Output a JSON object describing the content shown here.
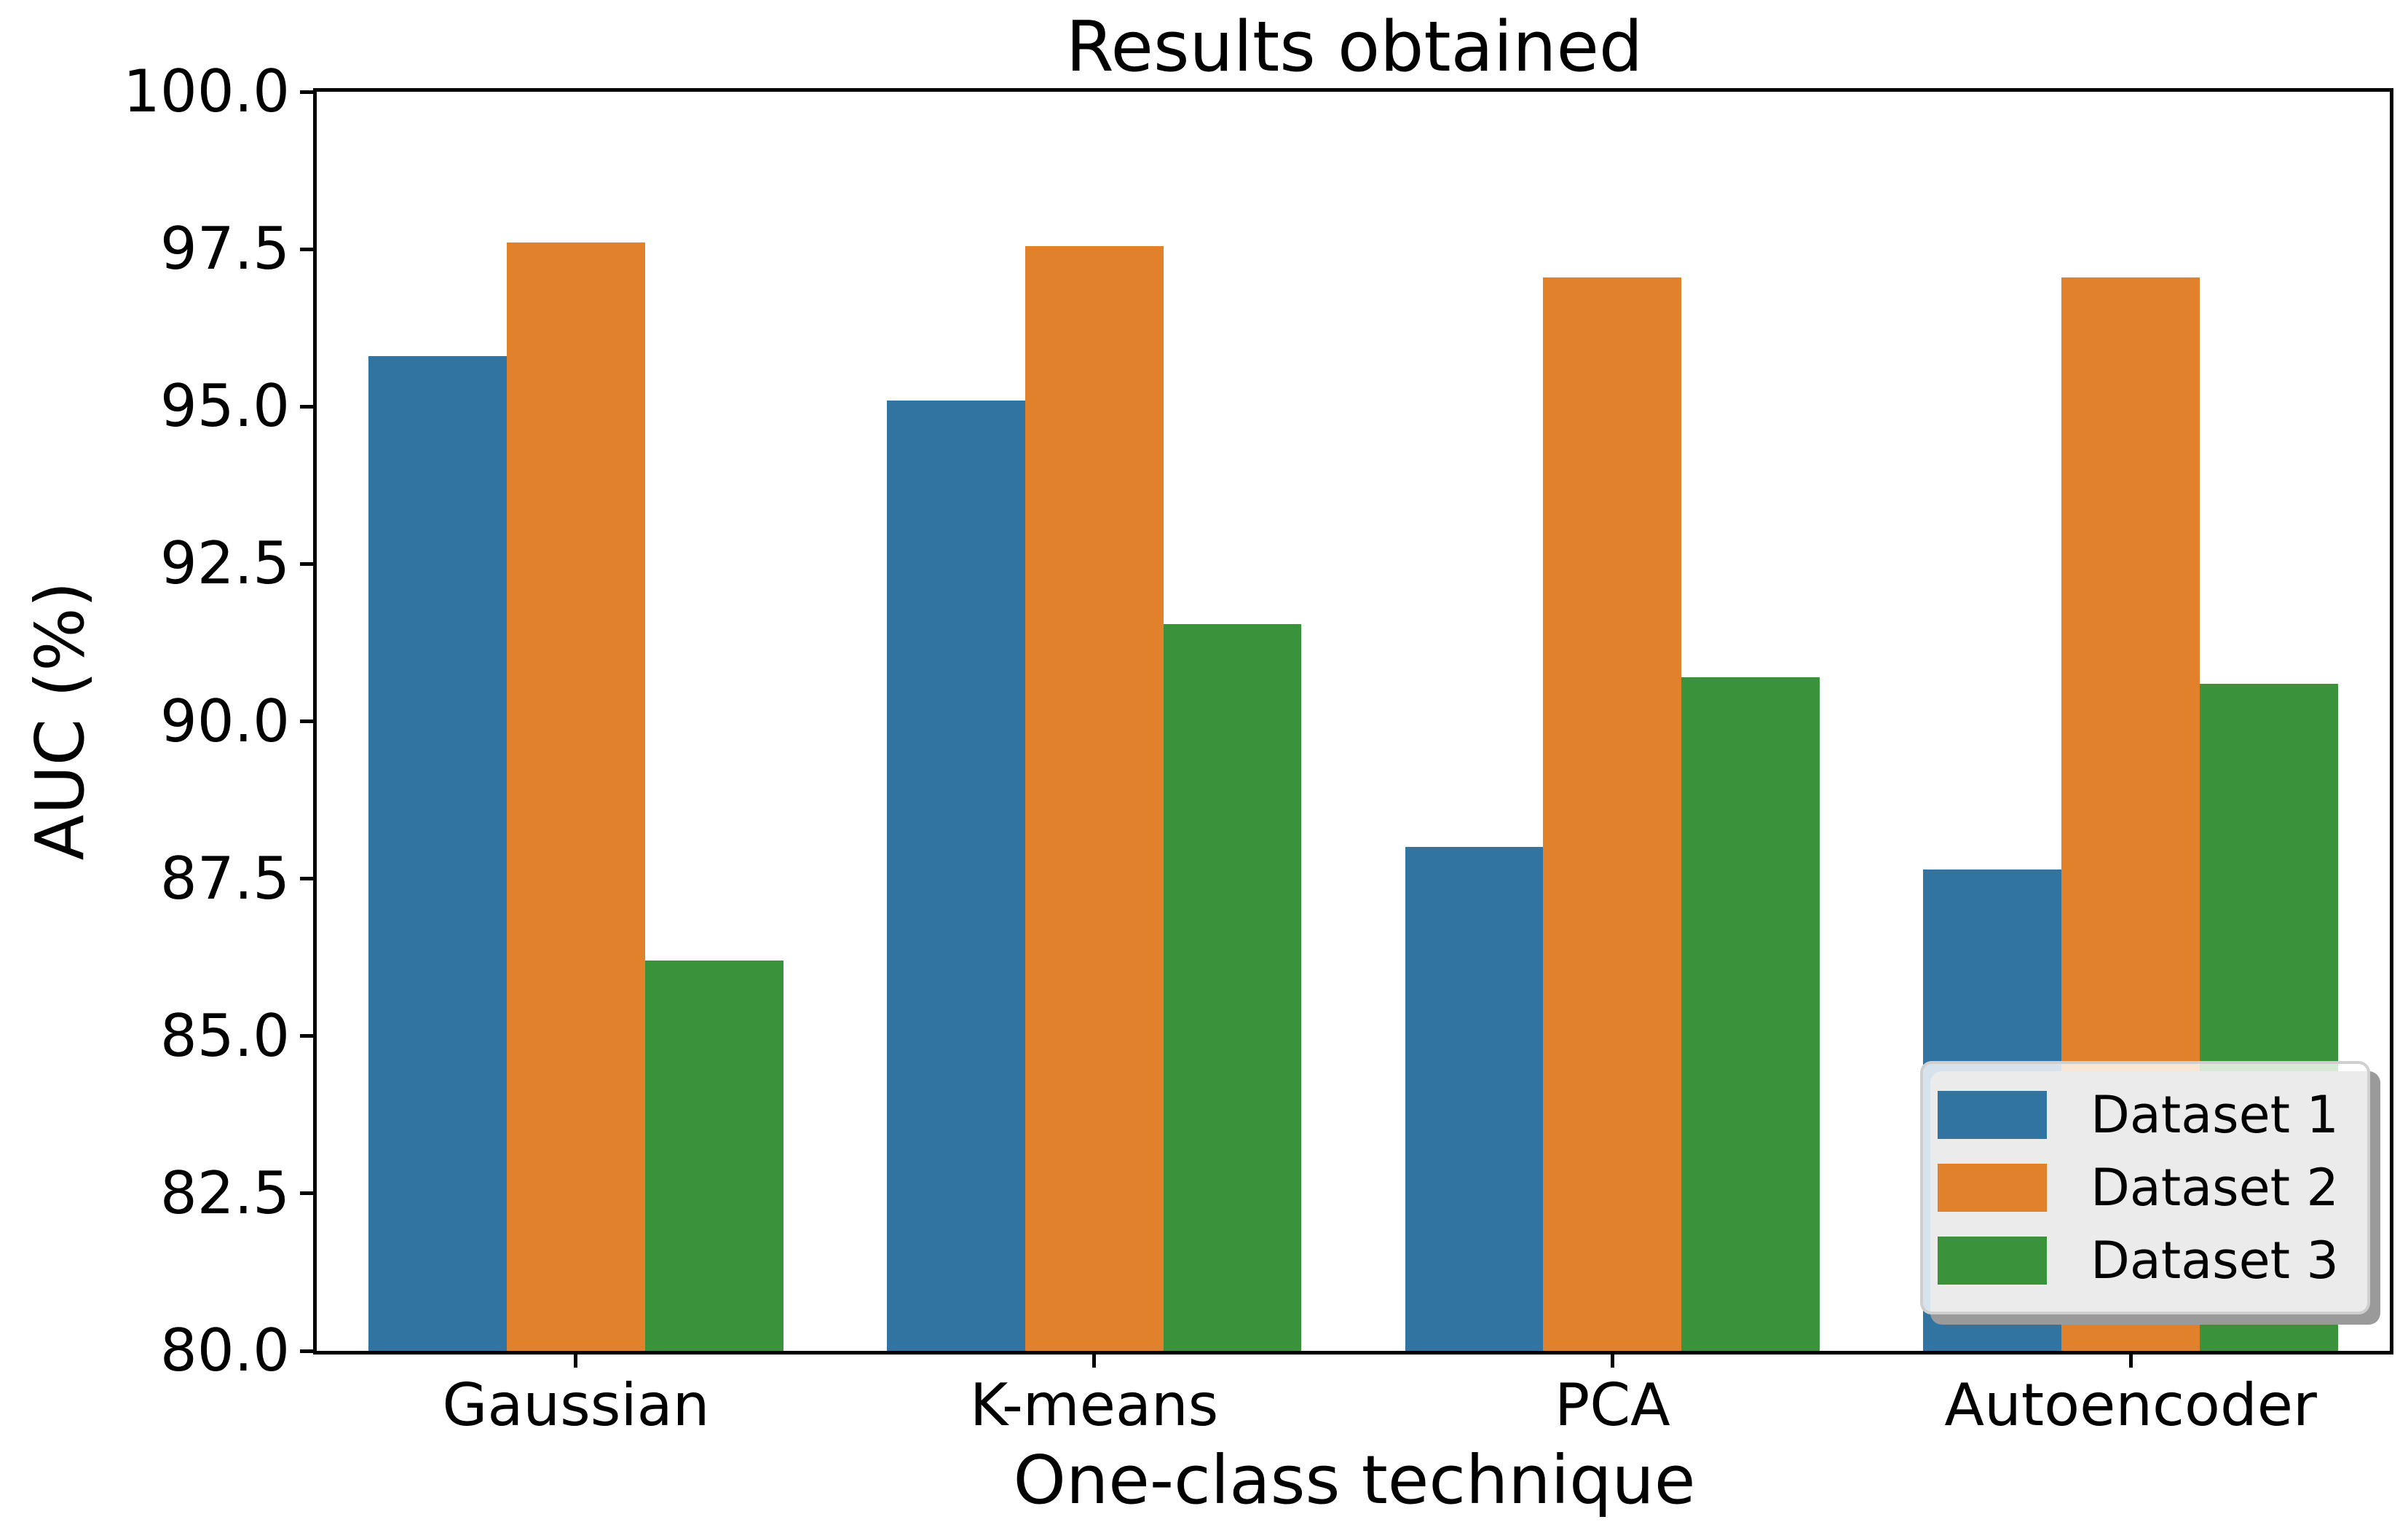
{
  "figure": {
    "background": "#ffffff"
  },
  "chart_data": {
    "type": "bar",
    "title": "Results obtained",
    "xlabel": "One-class technique",
    "ylabel": "AUC (%)",
    "ylim": [
      80.0,
      100.0
    ],
    "grid": false,
    "legend_position": "lower right",
    "bar_group_width_fraction": 0.8,
    "ytick_values": [
      100.0,
      97.5,
      95.0,
      92.5,
      90.0,
      87.5,
      85.0,
      82.5,
      80.0
    ],
    "ytick_labels": [
      "100.0",
      "97.5",
      "95.0",
      "92.5",
      "90.0",
      "87.5",
      "85.0",
      "82.5",
      "80.0"
    ],
    "categories": [
      "Gaussian",
      "K-means",
      "PCA",
      "Autoencoder"
    ],
    "series": [
      {
        "name": "Dataset 1",
        "color": "#3274a1",
        "values": [
          95.8,
          95.1,
          88.0,
          87.65
        ]
      },
      {
        "name": "Dataset 2",
        "color": "#e1812c",
        "values": [
          97.6,
          97.55,
          97.05,
          97.05
        ]
      },
      {
        "name": "Dataset 3",
        "color": "#3a923a",
        "values": [
          86.2,
          91.55,
          90.7,
          90.6
        ]
      }
    ]
  },
  "colors": {
    "spine": "#000000",
    "text": "#000000",
    "legend_border": "#cfcfcf",
    "legend_shadow": "#9a9a9a"
  }
}
